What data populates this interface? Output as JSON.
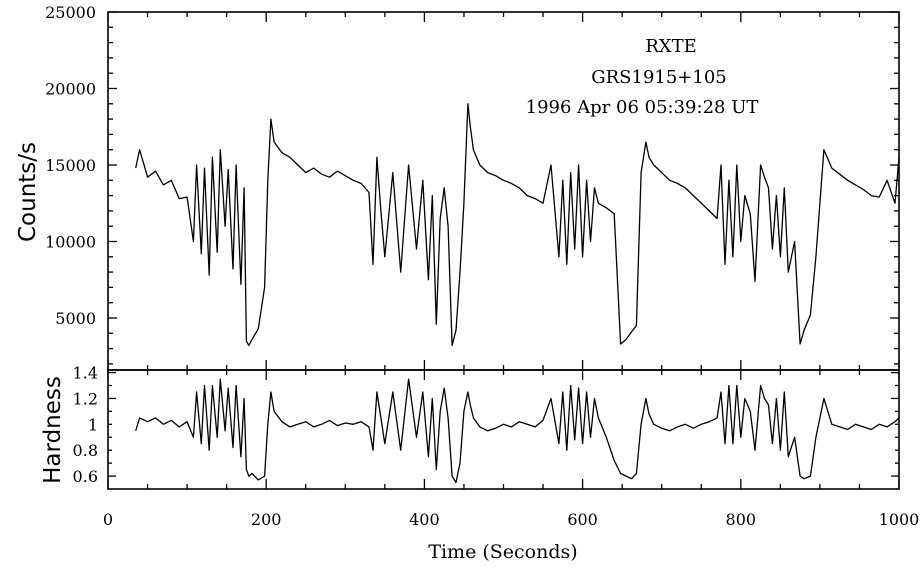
{
  "chart_data": [
    {
      "type": "line",
      "panel": "top",
      "annotations": [
        "RXTE",
        "GRS1915+105",
        "1996 Apr 06 05:39:28 UT"
      ],
      "ylabel": "Counts/s",
      "xlim": [
        0,
        1000
      ],
      "ylim": [
        1600,
        25000
      ],
      "yticks": [
        5000,
        10000,
        15000,
        20000,
        25000
      ],
      "series": [
        {
          "x": [
            35,
            40,
            50,
            60,
            70,
            80,
            90,
            100,
            108,
            112,
            118,
            122,
            128,
            132,
            138,
            142,
            148,
            152,
            158,
            162,
            168,
            172,
            175,
            178,
            182,
            190,
            198,
            202,
            206,
            210,
            220,
            230,
            240,
            250,
            260,
            270,
            280,
            290,
            300,
            310,
            320,
            330,
            335,
            340,
            345,
            350,
            360,
            370,
            380,
            390,
            398,
            405,
            410,
            415,
            420,
            425,
            430,
            435,
            440,
            445,
            450,
            455,
            458,
            462,
            470,
            480,
            490,
            500,
            510,
            520,
            530,
            540,
            550,
            560,
            570,
            575,
            580,
            585,
            590,
            595,
            600,
            605,
            610,
            615,
            620,
            630,
            640,
            648,
            655,
            662,
            668,
            674,
            680,
            684,
            690,
            700,
            710,
            720,
            730,
            740,
            750,
            760,
            770,
            775,
            780,
            785,
            790,
            795,
            800,
            805,
            812,
            818,
            825,
            830,
            835,
            840,
            845,
            850,
            855,
            860,
            868,
            875,
            880,
            888,
            895,
            905,
            915,
            925,
            935,
            945,
            955,
            965,
            975,
            985,
            995,
            1000
          ],
          "y": [
            14800,
            16000,
            14200,
            14600,
            13700,
            14000,
            12800,
            12900,
            10000,
            15000,
            9200,
            14800,
            7800,
            15500,
            9300,
            16000,
            11000,
            14700,
            8200,
            15000,
            7200,
            13500,
            3500,
            3200,
            3600,
            4300,
            7000,
            14000,
            18000,
            16500,
            15800,
            15500,
            15000,
            14500,
            14800,
            14400,
            14200,
            14600,
            14300,
            14000,
            13800,
            13200,
            8500,
            15500,
            12000,
            9000,
            14500,
            8000,
            15000,
            9500,
            14000,
            7500,
            13000,
            4600,
            11500,
            13500,
            11000,
            3200,
            4200,
            8000,
            12500,
            19000,
            17500,
            16000,
            15000,
            14500,
            14300,
            14000,
            13800,
            13500,
            13000,
            12800,
            12500,
            15000,
            9000,
            14000,
            8500,
            14500,
            9500,
            15000,
            9000,
            14000,
            10000,
            13500,
            12500,
            12200,
            11800,
            3300,
            3600,
            4100,
            4500,
            14500,
            16500,
            15500,
            15000,
            14500,
            14000,
            13800,
            13500,
            13000,
            12500,
            12000,
            11500,
            15000,
            8500,
            14000,
            9000,
            15000,
            10000,
            13000,
            11800,
            7400,
            15000,
            14200,
            13500,
            9500,
            13000,
            9000,
            13500,
            8000,
            10000,
            3300,
            4200,
            5200,
            9000,
            16000,
            14800,
            14400,
            14000,
            13700,
            13400,
            13000,
            12900,
            14000,
            12500,
            15500
          ]
        }
      ]
    },
    {
      "type": "line",
      "panel": "bottom",
      "ylabel": "Hardness",
      "xlabel": "Time (Seconds)",
      "xlim": [
        0,
        1000
      ],
      "xticks": [
        0,
        200,
        400,
        600,
        800,
        1000
      ],
      "ylim": [
        0.5,
        1.42
      ],
      "yticks": [
        0.6,
        0.8,
        1,
        1.2,
        1.4
      ],
      "ytick_labels": [
        "0.6",
        "0.8",
        "1",
        "1.2",
        "1.4"
      ],
      "series": [
        {
          "x": [
            35,
            40,
            50,
            60,
            70,
            80,
            90,
            100,
            108,
            112,
            118,
            122,
            128,
            132,
            138,
            142,
            148,
            152,
            158,
            162,
            168,
            172,
            175,
            178,
            182,
            190,
            198,
            202,
            206,
            210,
            220,
            230,
            240,
            250,
            260,
            270,
            280,
            290,
            300,
            310,
            320,
            330,
            335,
            340,
            345,
            350,
            360,
            370,
            380,
            390,
            398,
            405,
            410,
            415,
            420,
            425,
            430,
            435,
            440,
            445,
            450,
            455,
            458,
            462,
            470,
            480,
            490,
            500,
            510,
            520,
            530,
            540,
            550,
            560,
            570,
            575,
            580,
            585,
            590,
            595,
            600,
            605,
            610,
            615,
            620,
            630,
            640,
            648,
            655,
            662,
            668,
            674,
            680,
            684,
            690,
            700,
            710,
            720,
            730,
            740,
            750,
            760,
            770,
            775,
            780,
            785,
            790,
            795,
            800,
            805,
            812,
            818,
            825,
            830,
            835,
            840,
            845,
            850,
            855,
            860,
            868,
            875,
            880,
            888,
            895,
            905,
            915,
            925,
            935,
            945,
            955,
            965,
            975,
            985,
            995,
            1000
          ],
          "y": [
            0.95,
            1.05,
            1.02,
            1.05,
            1.0,
            1.03,
            0.98,
            1.02,
            0.9,
            1.25,
            0.85,
            1.3,
            0.8,
            1.3,
            0.9,
            1.35,
            0.95,
            1.28,
            0.82,
            1.3,
            0.75,
            1.2,
            0.65,
            0.6,
            0.62,
            0.57,
            0.6,
            1.0,
            1.25,
            1.1,
            1.02,
            0.98,
            1.0,
            1.02,
            0.98,
            1.0,
            1.03,
            0.99,
            1.01,
            1.0,
            1.02,
            0.98,
            0.8,
            1.25,
            1.05,
            0.85,
            1.25,
            0.8,
            1.35,
            0.9,
            1.25,
            0.75,
            1.2,
            0.65,
            1.1,
            1.28,
            1.05,
            0.6,
            0.55,
            0.7,
            1.1,
            1.25,
            1.15,
            1.05,
            0.98,
            0.95,
            0.97,
            1.0,
            0.98,
            1.02,
            1.0,
            0.98,
            1.03,
            1.2,
            0.85,
            1.25,
            0.8,
            1.3,
            0.88,
            1.28,
            0.85,
            1.25,
            0.9,
            1.2,
            1.05,
            0.9,
            0.72,
            0.62,
            0.6,
            0.58,
            0.62,
            1.0,
            1.2,
            1.08,
            1.0,
            0.97,
            0.95,
            0.98,
            1.0,
            0.97,
            1.0,
            1.02,
            1.05,
            1.25,
            0.85,
            1.3,
            0.85,
            1.3,
            0.9,
            1.2,
            1.1,
            0.8,
            1.3,
            1.2,
            1.15,
            0.85,
            1.2,
            0.8,
            1.25,
            0.75,
            0.9,
            0.6,
            0.58,
            0.6,
            0.9,
            1.2,
            1.0,
            0.98,
            0.96,
            1.0,
            0.98,
            0.96,
            1.0,
            0.98,
            1.02,
            1.05
          ]
        }
      ]
    }
  ]
}
